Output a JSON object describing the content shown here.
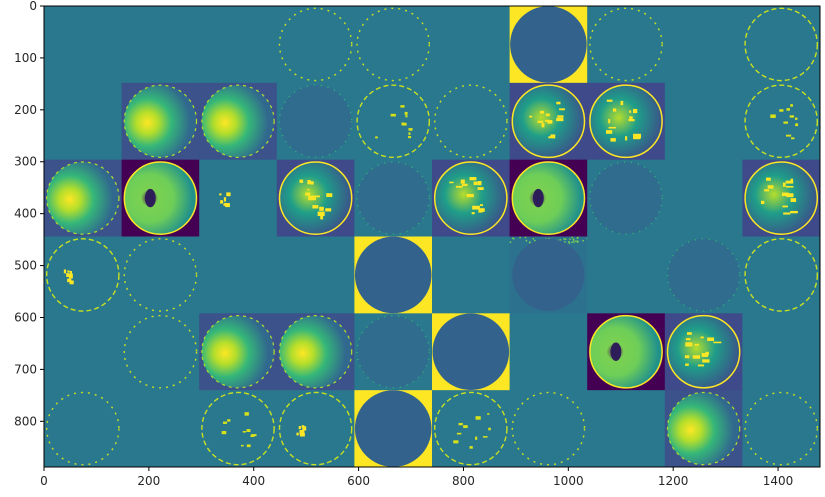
{
  "chart_data": {
    "type": "heatmap",
    "title": "",
    "xlabel": "",
    "ylabel": "",
    "colormap": "viridis",
    "xlim": [
      0,
      1480
    ],
    "ylim": [
      888,
      0
    ],
    "x_ticks": [
      0,
      200,
      400,
      600,
      800,
      1000,
      1200,
      1400
    ],
    "y_ticks": [
      0,
      100,
      200,
      300,
      400,
      500,
      600,
      700,
      800
    ],
    "tile_size": 148,
    "grid_rows": 6,
    "grid_cols": 10,
    "tiles": [
      [
        "empty",
        "empty",
        "empty",
        "ring_sparse",
        "ring_sparse",
        "empty",
        "disk_corners",
        "ring_sparse",
        "empty",
        "ring"
      ],
      [
        "empty",
        "bright_left",
        "bright_left",
        "dim_ring",
        "ring_detail",
        "ring_sparse",
        "bright_detail",
        "bright_detail",
        "empty",
        "ring_detail"
      ],
      [
        "bright_left",
        "dark_bright",
        "spot",
        "bright_detail",
        "dim_ring",
        "bright_detail",
        "dark_bright",
        "dim_ring",
        "empty",
        "bright_detail"
      ],
      [
        "ring_spot",
        "ring_sparse",
        "empty",
        "empty",
        "disk_corners",
        "empty",
        "disk_noise",
        "empty",
        "dim_ring",
        "ring"
      ],
      [
        "empty",
        "ring_sparse",
        "bright_left",
        "bright_left",
        "dim_ring",
        "disk_corners",
        "empty",
        "dark_bright",
        "bright_detail",
        "empty"
      ],
      [
        "ring_sparse",
        "empty",
        "ring_detail",
        "ring_spot",
        "disk_corners",
        "ring_detail",
        "ring_sparse",
        "empty",
        "bright_left",
        "ring_sparse"
      ]
    ]
  }
}
